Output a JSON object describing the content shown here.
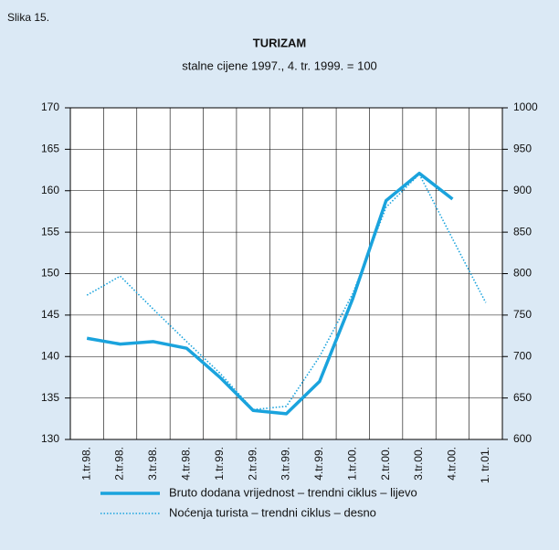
{
  "figure_label": "Slika 15.",
  "chart_data": {
    "type": "line",
    "title": "TURIZAM",
    "subtitle": "stalne cijene 1997., 4. tr. 1999. = 100",
    "categories": [
      "1.tr.98.",
      "2.tr.98.",
      "3.tr.98.",
      "4.tr.98.",
      "1.tr.99.",
      "2.tr.99.",
      "3.tr.99.",
      "4.tr.99.",
      "1.tr.00.",
      "2.tr.00.",
      "3.tr.00.",
      "4.tr.00.",
      "1. tr.01."
    ],
    "series": [
      {
        "name": "Bruto dodana vrijednost – trendni ciklus – lijevo",
        "color": "#1aa3dd",
        "style": "solid",
        "values": [
          142.2,
          141.5,
          141.8,
          141.0,
          137.5,
          133.5,
          133.1,
          137.0,
          147.0,
          158.8,
          162.1,
          159.0,
          null
        ]
      },
      {
        "name": "Noćenja turista – trendni ciklus – desno",
        "color": "#1aa3dd",
        "style": "dotted",
        "axis": "y2",
        "values": [
          774,
          797,
          757,
          718,
          680,
          636,
          640,
          700,
          776,
          880,
          920,
          842,
          765
        ]
      }
    ],
    "ylim": [
      130,
      170
    ],
    "yticks": [
      130,
      135,
      140,
      145,
      150,
      155,
      160,
      165,
      170
    ],
    "y2lim": [
      600,
      1000
    ],
    "y2ticks": [
      600,
      650,
      700,
      750,
      800,
      850,
      900,
      950,
      1000
    ],
    "grid": true
  }
}
